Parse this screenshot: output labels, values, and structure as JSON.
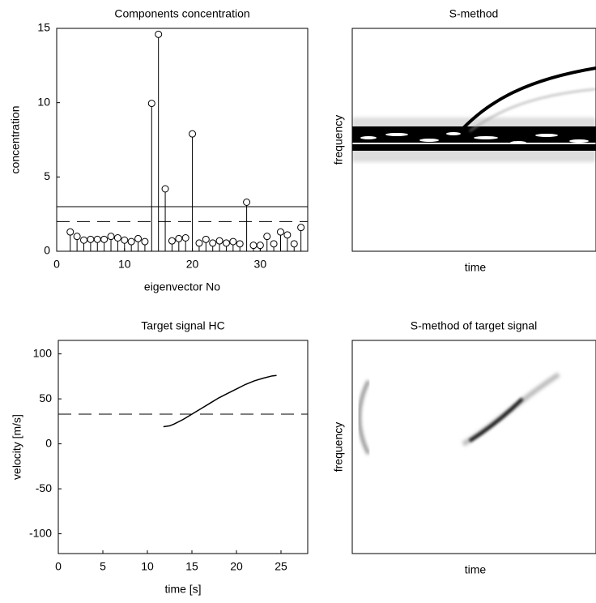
{
  "chart_data": [
    {
      "type": "stem",
      "title": "Components concentration",
      "xlabel": "eigenvector No",
      "ylabel": "concentration",
      "x": [
        2,
        3,
        4,
        5,
        6,
        7,
        8,
        9,
        10,
        11,
        12,
        13,
        14,
        15,
        16,
        17,
        18,
        19,
        20,
        21,
        22,
        23,
        24,
        25,
        26,
        27,
        28,
        29,
        30,
        31,
        32,
        33,
        34,
        35,
        36
      ],
      "values": [
        1.3,
        1.0,
        0.75,
        0.8,
        0.8,
        0.8,
        1.0,
        0.9,
        0.75,
        0.65,
        0.85,
        0.65,
        9.95,
        14.6,
        4.2,
        0.7,
        0.85,
        0.9,
        7.9,
        0.55,
        0.8,
        0.55,
        0.7,
        0.55,
        0.65,
        0.5,
        3.3,
        0.4,
        0.4,
        1.0,
        0.5,
        1.3,
        1.1,
        0.5,
        1.6
      ],
      "color": "#000000",
      "xlim": [
        0,
        37
      ],
      "xticks": [
        0,
        10,
        20,
        30
      ],
      "ylim": [
        0,
        15
      ],
      "yticks": [
        0,
        5,
        10,
        15
      ],
      "hlines": [
        {
          "value": 3,
          "style": "solid"
        },
        {
          "value": 2,
          "style": "dashed"
        }
      ]
    },
    {
      "type": "image",
      "title": "S-method",
      "xlabel": "time",
      "ylabel": "frequency"
    },
    {
      "type": "line",
      "title": "Target signal HC",
      "xlabel": "time [s]",
      "ylabel": "velocity [m/s]",
      "x": [
        11.8,
        12.5,
        13,
        14,
        15,
        16,
        17,
        18,
        19,
        20,
        21,
        22,
        23,
        24,
        24.5
      ],
      "values": [
        19,
        20,
        22,
        27,
        33,
        39,
        45,
        51,
        56,
        61,
        66,
        70,
        73,
        75.5,
        76
      ],
      "color": "#000000",
      "xlim": [
        0,
        28
      ],
      "xticks": [
        0,
        5,
        10,
        15,
        20,
        25
      ],
      "ylim": [
        -122,
        115
      ],
      "yticks": [
        -100,
        -50,
        0,
        50,
        100
      ],
      "hlines": [
        {
          "value": 33,
          "style": "dashed"
        }
      ]
    },
    {
      "type": "image",
      "title": "S-method of target signal",
      "xlabel": "time",
      "ylabel": "frequency"
    }
  ]
}
